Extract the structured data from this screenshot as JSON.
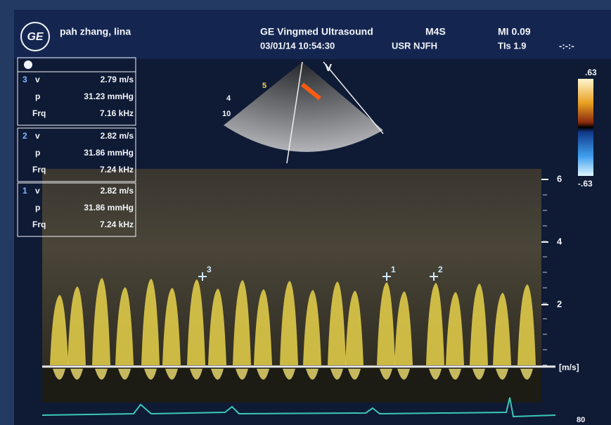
{
  "header": {
    "logo": "GE",
    "patient": "pah zhang, lina",
    "device": "GE Vingmed Ultrasound",
    "probe": "M4S",
    "mi": "MI 0.09",
    "datetime": "03/01/14 10:54:30",
    "user": "USR NJFH",
    "tis": "TIs 1.9",
    "time_field": "-:-:-"
  },
  "measurements": [
    {
      "id": "3",
      "v_label": "v",
      "v": "2.79 m/s",
      "p_label": "p",
      "p": "31.23 mmHg",
      "frq_label": "Frq",
      "frq": "7.16 kHz"
    },
    {
      "id": "2",
      "v_label": "v",
      "v": "2.82 m/s",
      "p_label": "p",
      "p": "31.86 mmHg",
      "frq_label": "Frq",
      "frq": "7.24 kHz"
    },
    {
      "id": "1",
      "v_label": "v",
      "v": "2.82 m/s",
      "p_label": "p",
      "p": "31.86 mmHg",
      "frq_label": "Frq",
      "frq": "7.24 kHz"
    }
  ],
  "sector": {
    "labels": [
      "5",
      "4",
      "10"
    ],
    "mode": "V"
  },
  "color_scale": {
    "top": ".63",
    "bottom": "-.63"
  },
  "velocity_scale": {
    "ticks": [
      "6",
      "4",
      "2"
    ],
    "unit": "[m/s]"
  },
  "calipers": [
    "3",
    "1",
    "2"
  ],
  "ecg_scale": "80"
}
